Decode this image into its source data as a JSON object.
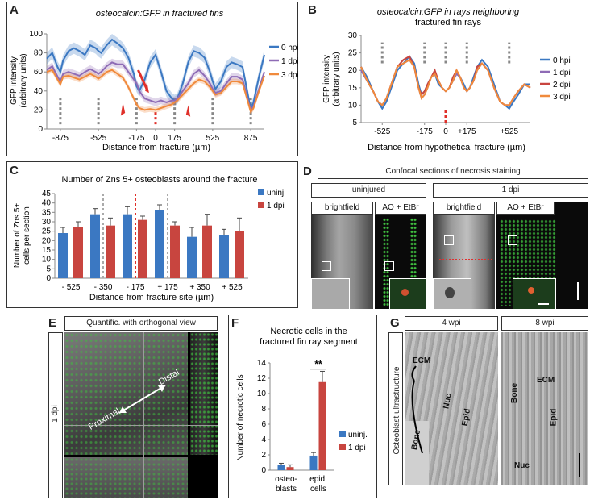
{
  "panels": {
    "A": {
      "letter": "A",
      "title": "osteocalcin:GFP in fractured fins",
      "ylabel": [
        "GFP intensity",
        "(arbitrary units)"
      ],
      "xlabel": "Distance from fracture (µm)",
      "legend": [
        "0 hpi",
        "1 dpi",
        "3 dpi"
      ]
    },
    "B": {
      "letter": "B",
      "title": [
        "osteocalcin:GFP in rays neighboring",
        "fractured fin rays"
      ],
      "ylabel": [
        "GFP intensity",
        "(arbitrary units)"
      ],
      "xlabel": "Distance from hypothetical fracture (µm)",
      "legend": [
        "0 hpi",
        "1 dpi",
        "2 dpi",
        "3 dpi"
      ]
    },
    "C": {
      "letter": "C",
      "title": "Number of Zns 5+ osteoblasts around the fracture",
      "ylabel": [
        "Number of Zns 5+",
        "cells per section"
      ],
      "xlabel": "Distance from fracture site (µm)",
      "legend": [
        "uninj.",
        "1 dpi"
      ]
    },
    "D": {
      "letter": "D",
      "title": "Confocal sections of necrosis staining",
      "group_uninjured": "uninjured",
      "group_1dpi": "1 dpi",
      "col_brightfield": "brightfield",
      "col_stain": "AO + EtBr"
    },
    "E": {
      "letter": "E",
      "title": "Quantific. with orthogonal view",
      "side": "1 dpi",
      "proximal": "Proximal",
      "distal": "Distal"
    },
    "F": {
      "letter": "F",
      "title": [
        "Necrotic cells in the",
        "fractured fin ray segment"
      ],
      "ylabel": "Number of necrotic cells",
      "legend": [
        "uninj.",
        "1 dpi"
      ],
      "significance": "**"
    },
    "G": {
      "letter": "G",
      "side": "Osteoblast ultrastructure",
      "col_4": "4 wpi",
      "col_8": "8 wpi",
      "ecm": "ECM",
      "bone": "Bone",
      "nuc": "Nuc",
      "epid": "Epid"
    }
  },
  "colors": {
    "blue": "#3b78c2",
    "purple": "#8e6bb5",
    "red": "#c8453f",
    "orange": "#f08a3c",
    "green": "#3fbf3f"
  },
  "chart_data": [
    {
      "panel": "A",
      "type": "line",
      "title": "osteocalcin:GFP in fractured fins",
      "xlabel": "Distance from fracture (µm)",
      "ylabel": "GFP intensity (arbitrary units)",
      "xlim": [
        -1000,
        1000
      ],
      "ylim": [
        0,
        100
      ],
      "xticks": [
        -875,
        -525,
        -175,
        0,
        175,
        525,
        875
      ],
      "yticks": [
        0,
        20,
        40,
        60,
        80,
        100
      ],
      "x": [
        -1000,
        -950,
        -900,
        -875,
        -850,
        -800,
        -750,
        -700,
        -650,
        -600,
        -550,
        -525,
        -500,
        -450,
        -400,
        -350,
        -300,
        -250,
        -200,
        -175,
        -150,
        -100,
        -50,
        0,
        50,
        100,
        150,
        175,
        200,
        250,
        300,
        350,
        400,
        450,
        500,
        525,
        550,
        600,
        650,
        700,
        750,
        800,
        850,
        875,
        900,
        950,
        1000
      ],
      "series": [
        {
          "name": "0 hpi",
          "color": "#3b78c2",
          "values": [
            74,
            80,
            65,
            60,
            72,
            82,
            85,
            82,
            78,
            88,
            85,
            82,
            80,
            88,
            94,
            90,
            85,
            75,
            58,
            45,
            40,
            52,
            70,
            78,
            60,
            40,
            32,
            30,
            32,
            48,
            70,
            82,
            80,
            75,
            60,
            50,
            42,
            50,
            65,
            70,
            68,
            65,
            35,
            20,
            28,
            55,
            78
          ]
        },
        {
          "name": "1 dpi",
          "color": "#8e6bb5",
          "values": [
            62,
            66,
            55,
            50,
            58,
            60,
            58,
            56,
            60,
            63,
            60,
            58,
            60,
            66,
            70,
            68,
            68,
            60,
            52,
            48,
            40,
            32,
            30,
            28,
            30,
            28,
            30,
            30,
            32,
            40,
            48,
            58,
            62,
            56,
            48,
            42,
            38,
            40,
            48,
            55,
            55,
            52,
            30,
            20,
            24,
            42,
            60
          ]
        },
        {
          "name": "3 dpi",
          "color": "#f08a3c",
          "values": [
            60,
            62,
            52,
            47,
            55,
            56,
            54,
            52,
            55,
            58,
            55,
            53,
            55,
            60,
            62,
            58,
            54,
            44,
            32,
            26,
            22,
            20,
            21,
            20,
            22,
            24,
            26,
            28,
            30,
            36,
            42,
            48,
            52,
            50,
            44,
            40,
            36,
            38,
            44,
            50,
            50,
            48,
            28,
            18,
            22,
            40,
            56
          ]
        }
      ]
    },
    {
      "panel": "B",
      "type": "line",
      "title": "osteocalcin:GFP in rays neighboring fractured fin rays",
      "xlabel": "Distance from hypothetical fracture (µm)",
      "ylabel": "GFP intensity (arbitrary units)",
      "xlim": [
        -700,
        700
      ],
      "ylim": [
        5,
        30
      ],
      "yticks": [
        5,
        10,
        15,
        20,
        25,
        30
      ],
      "xtick_labels": [
        "-525",
        "-175",
        "0",
        "+175",
        "+525"
      ],
      "xtick_values": [
        -525,
        -175,
        0,
        175,
        525
      ],
      "x": [
        -700,
        -650,
        -600,
        -560,
        -525,
        -490,
        -450,
        -400,
        -350,
        -300,
        -260,
        -225,
        -200,
        -175,
        -150,
        -120,
        -90,
        -60,
        -30,
        0,
        30,
        60,
        90,
        120,
        150,
        175,
        200,
        230,
        260,
        300,
        350,
        400,
        450,
        490,
        525,
        560,
        600,
        650,
        700
      ],
      "series": [
        {
          "name": "0 hpi",
          "color": "#3b78c2",
          "values": [
            21,
            18,
            14,
            11,
            9,
            11,
            15,
            20,
            22,
            24,
            22,
            16,
            13,
            14,
            16,
            18,
            19,
            16,
            15,
            14,
            15,
            17,
            19,
            18,
            16,
            14,
            15,
            18,
            21,
            23,
            21,
            16,
            11,
            10,
            9,
            11,
            13,
            16,
            16
          ]
        },
        {
          "name": "1 dpi",
          "color": "#8e6bb5",
          "values": [
            20,
            17,
            14,
            11,
            10,
            12,
            16,
            21,
            22,
            23,
            21,
            15,
            12,
            13,
            15,
            18,
            19,
            17,
            15,
            14,
            15,
            17,
            19,
            18,
            15,
            14,
            15,
            17,
            20,
            22,
            20,
            15,
            11,
            10,
            10,
            12,
            14,
            16,
            15
          ]
        },
        {
          "name": "2 dpi",
          "color": "#c8453f",
          "values": [
            21,
            17,
            14,
            11,
            10,
            12,
            16,
            21,
            23,
            24,
            21,
            15,
            13,
            14,
            16,
            18,
            20,
            17,
            15,
            14,
            15,
            18,
            20,
            18,
            15,
            14,
            15,
            17,
            21,
            22,
            20,
            15,
            11,
            10,
            10,
            12,
            14,
            16,
            15
          ]
        },
        {
          "name": "3 dpi",
          "color": "#f08a3c",
          "values": [
            21,
            17,
            14,
            11,
            10,
            12,
            16,
            21,
            22,
            23,
            21,
            15,
            12,
            13,
            15,
            18,
            19,
            17,
            15,
            14,
            15,
            17,
            20,
            18,
            15,
            14,
            15,
            17,
            20,
            22,
            20,
            15,
            11,
            10,
            10,
            12,
            14,
            16,
            15
          ]
        }
      ]
    },
    {
      "panel": "C",
      "type": "bar",
      "title": "Number of Zns 5+ osteoblasts around the fracture",
      "xlabel": "Distance from fracture site (µm)",
      "ylabel": "Number of Zns 5+ cells per section",
      "ylim": [
        0,
        45
      ],
      "yticks": [
        0,
        5,
        10,
        15,
        20,
        25,
        30,
        35,
        40,
        45
      ],
      "categories": [
        "- 525",
        "- 350",
        "- 175",
        "+ 175",
        "+ 350",
        "+ 525"
      ],
      "series": [
        {
          "name": "uninj.",
          "color": "#3b78c2",
          "values": [
            24,
            34,
            34,
            36,
            22,
            23
          ],
          "errors": [
            3,
            3,
            4,
            3,
            5,
            3
          ]
        },
        {
          "name": "1 dpi",
          "color": "#c8453f",
          "values": [
            27,
            28,
            31,
            28,
            28,
            25
          ],
          "errors": [
            3,
            4,
            2,
            2,
            6,
            7
          ]
        }
      ]
    },
    {
      "panel": "F",
      "type": "bar",
      "title": "Necrotic cells in the fractured fin ray segment",
      "ylabel": "Number of necrotic cells",
      "ylim": [
        0,
        14
      ],
      "yticks": [
        0,
        2,
        4,
        6,
        8,
        10,
        12,
        14
      ],
      "categories": [
        "osteo-\nblasts",
        "epid.\ncells"
      ],
      "series": [
        {
          "name": "uninj.",
          "color": "#3b78c2",
          "values": [
            0.7,
            1.9
          ],
          "errors": [
            0.2,
            0.4
          ]
        },
        {
          "name": "1 dpi",
          "color": "#c8453f",
          "values": [
            0.4,
            11.5
          ],
          "errors": [
            0.3,
            1.4
          ]
        }
      ]
    }
  ]
}
